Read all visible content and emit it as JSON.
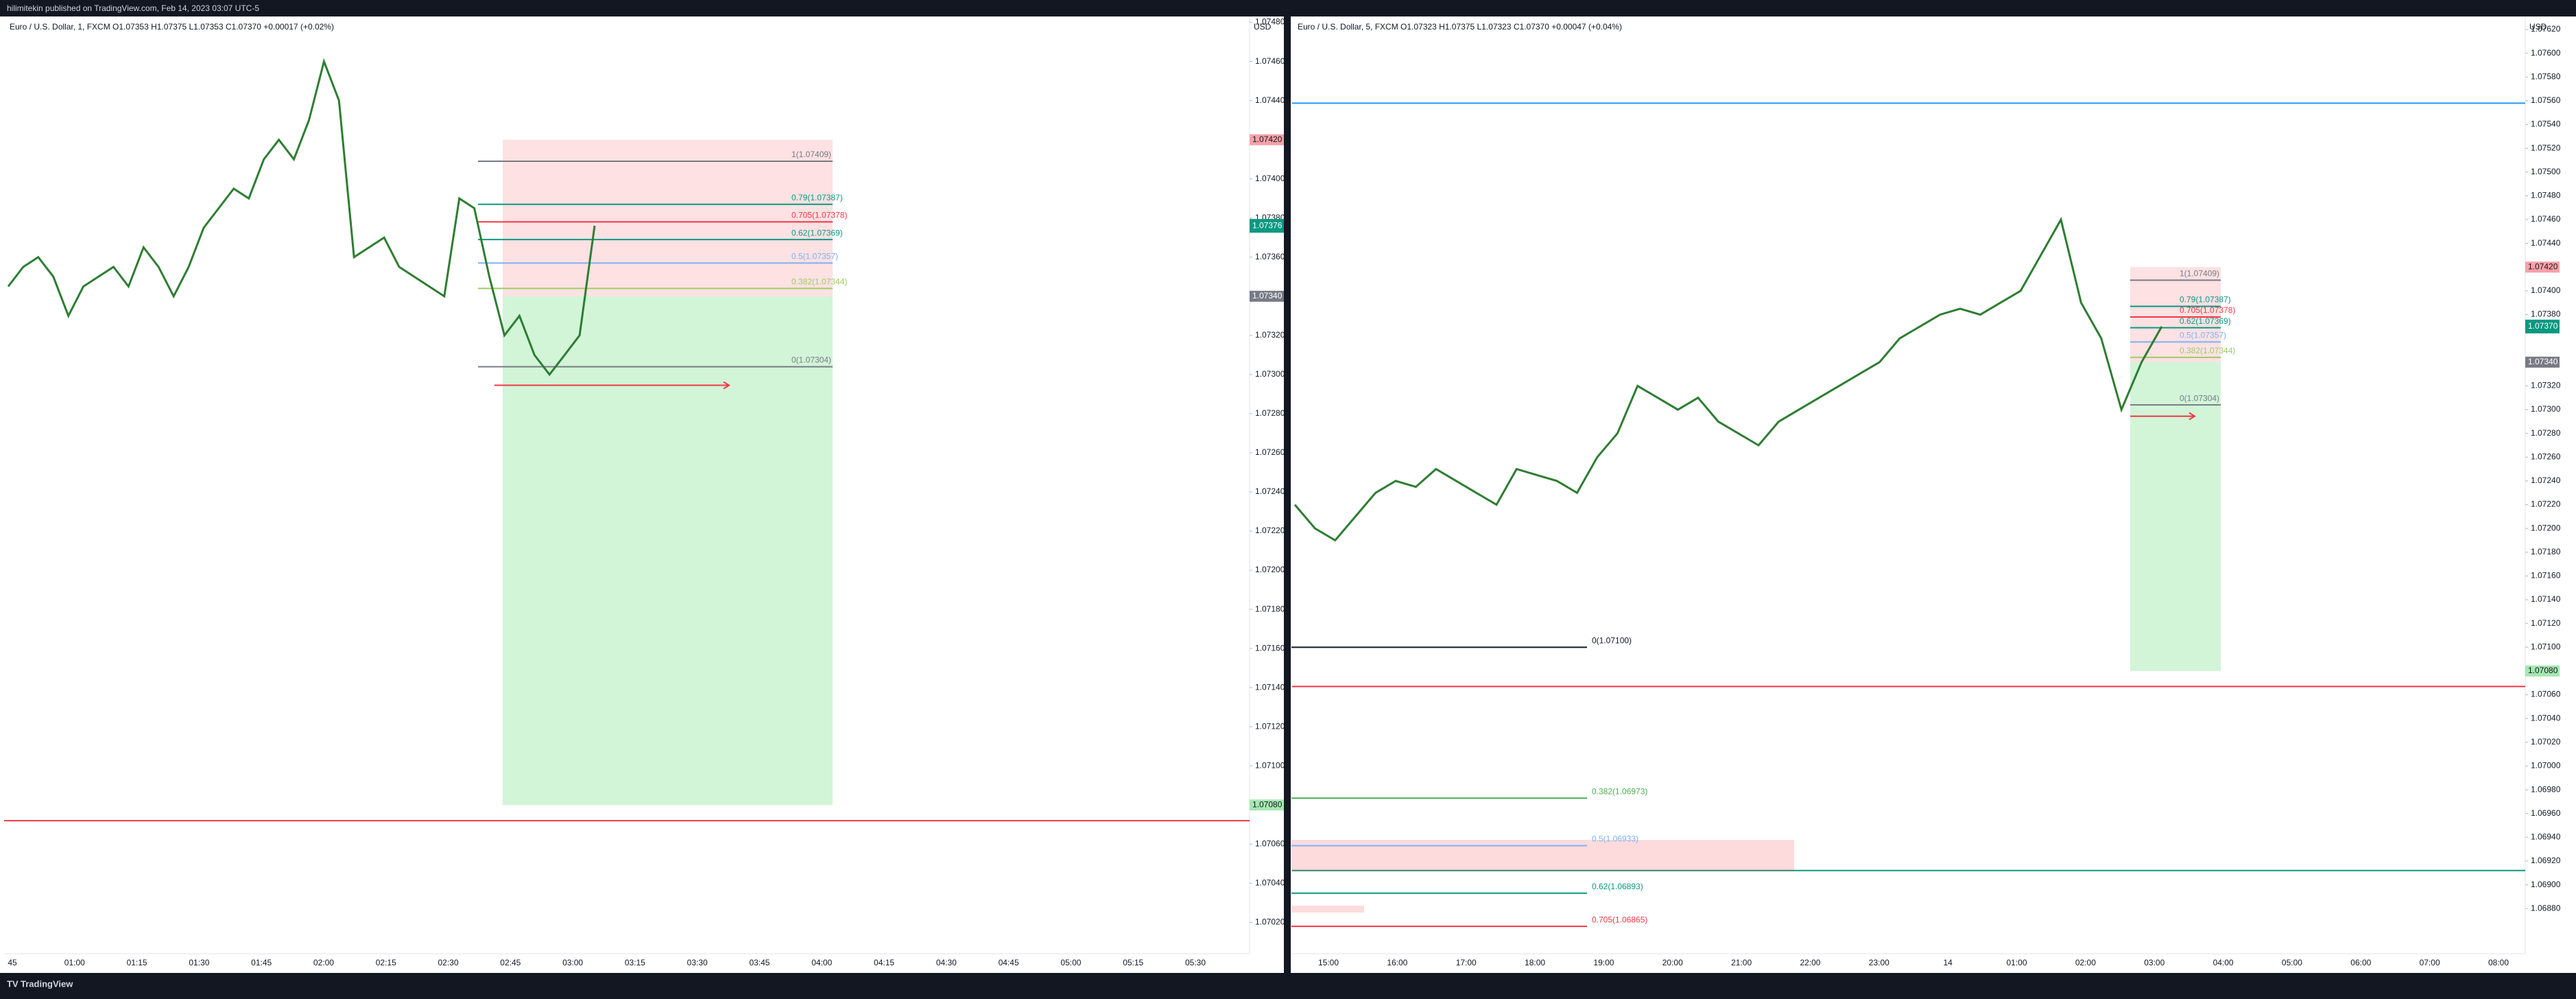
{
  "header": {
    "title": "hilimitekin published on TradingView.com, Feb 14, 2023 03:07 UTC-5"
  },
  "footer": {
    "brand": "TradingView"
  },
  "chart_data": [
    {
      "type": "line",
      "legend": "Euro / U.S. Dollar, 1, FXCM  O1.07353  H1.07375  L1.07353  C1.07370  +0.00017 (+0.02%)",
      "currency": "USD",
      "color": "#2e7d32",
      "values": [
        1.07345,
        1.07355,
        1.0736,
        1.0735,
        1.0733,
        1.07345,
        1.0735,
        1.07355,
        1.07345,
        1.07365,
        1.07355,
        1.0734,
        1.07355,
        1.07375,
        1.07385,
        1.07395,
        1.0739,
        1.0741,
        1.0742,
        1.0741,
        1.0743,
        1.0746,
        1.0744,
        1.0736,
        1.07365,
        1.0737,
        1.07355,
        1.0735,
        1.07345,
        1.0734,
        1.0739,
        1.07385,
        1.0735,
        1.0732,
        1.0733,
        1.0731,
        1.073,
        1.0731,
        1.0732,
        1.07376
      ],
      "ylim": [
        1.07004,
        1.07483
      ],
      "yticks": [
        {
          "value": 1.0748,
          "label": "1.07480"
        },
        {
          "value": 1.0746,
          "label": "1.07460"
        },
        {
          "value": 1.0744,
          "label": "1.07440"
        },
        {
          "value": 1.074,
          "label": "1.07400"
        },
        {
          "value": 1.0738,
          "label": "1.07380"
        },
        {
          "value": 1.0736,
          "label": "1.07360"
        },
        {
          "value": 1.0732,
          "label": "1.07320"
        },
        {
          "value": 1.073,
          "label": "1.07300"
        },
        {
          "value": 1.0728,
          "label": "1.07280"
        },
        {
          "value": 1.0726,
          "label": "1.07260"
        },
        {
          "value": 1.0724,
          "label": "1.07240"
        },
        {
          "value": 1.0722,
          "label": "1.07220"
        },
        {
          "value": 1.072,
          "label": "1.07200"
        },
        {
          "value": 1.0718,
          "label": "1.07180"
        },
        {
          "value": 1.0716,
          "label": "1.07160"
        },
        {
          "value": 1.0714,
          "label": "1.07140"
        },
        {
          "value": 1.0712,
          "label": "1.07120"
        },
        {
          "value": 1.071,
          "label": "1.07100"
        },
        {
          "value": 1.0706,
          "label": "1.07060"
        },
        {
          "value": 1.0704,
          "label": "1.07040"
        },
        {
          "value": 1.0702,
          "label": "1.07020"
        }
      ],
      "xticks": [
        "45",
        "01:00",
        "01:15",
        "01:30",
        "01:45",
        "02:00",
        "02:15",
        "02:30",
        "02:45",
        "03:00",
        "03:15",
        "03:30",
        "03:45",
        "04:00",
        "04:15",
        "04:30",
        "04:45",
        "05:00",
        "05:15",
        "05:30"
      ],
      "position": {
        "stop": {
          "value": 1.0742,
          "label": "1.07420"
        },
        "entry": {
          "value": 1.0734,
          "label": "1.07340"
        },
        "target": {
          "value": 1.0708,
          "label": "1.07080"
        }
      },
      "last_price": {
        "value": 1.07376,
        "label": "1.07376"
      },
      "hlines": [
        {
          "value": 1.07072,
          "color": "#f23645"
        }
      ],
      "fib": [
        {
          "label": "1(1.07409)",
          "value": 1.07409,
          "color": "#787b86"
        },
        {
          "label": "0.79(1.07387)",
          "value": 1.07387,
          "color": "#089981"
        },
        {
          "label": "0.705(1.07378)",
          "value": 1.07378,
          "color": "#f23645"
        },
        {
          "label": "0.62(1.07369)",
          "value": 1.07369,
          "color": "#089981"
        },
        {
          "label": "0.5(1.07357)",
          "value": 1.07357,
          "color": "#7eb0f5"
        },
        {
          "label": "0.382(1.07344)",
          "value": 1.07344,
          "color": "#9ccc65"
        },
        {
          "label": "0(1.07304)",
          "value": 1.07304,
          "color": "#787b86"
        }
      ]
    },
    {
      "type": "line",
      "legend": "Euro / U.S. Dollar, 5, FXCM  O1.07323  H1.07375  L1.07323  C1.07370  +0.00047 (+0.04%)",
      "currency": "USD",
      "color": "#2e7d32",
      "values": [
        1.0722,
        1.072,
        1.0719,
        1.0721,
        1.0723,
        1.0724,
        1.07235,
        1.0725,
        1.0724,
        1.0723,
        1.0722,
        1.0725,
        1.07245,
        1.0724,
        1.0723,
        1.0726,
        1.0728,
        1.0732,
        1.0731,
        1.073,
        1.0731,
        1.0729,
        1.0728,
        1.0727,
        1.0729,
        1.073,
        1.0731,
        1.0732,
        1.0733,
        1.0734,
        1.0736,
        1.0737,
        1.0738,
        1.07385,
        1.0738,
        1.0739,
        1.074,
        1.0743,
        1.0746,
        1.0739,
        1.0736,
        1.073,
        1.0734,
        1.0737
      ],
      "ylim": [
        1.06842,
        1.07631
      ],
      "yticks": [
        {
          "value": 1.0762,
          "label": "1.07620"
        },
        {
          "value": 1.076,
          "label": "1.07600"
        },
        {
          "value": 1.0758,
          "label": "1.07580"
        },
        {
          "value": 1.0756,
          "label": "1.07560"
        },
        {
          "value": 1.0754,
          "label": "1.07540"
        },
        {
          "value": 1.0752,
          "label": "1.07520"
        },
        {
          "value": 1.075,
          "label": "1.07500"
        },
        {
          "value": 1.0748,
          "label": "1.07480"
        },
        {
          "value": 1.0746,
          "label": "1.07460"
        },
        {
          "value": 1.0744,
          "label": "1.07440"
        },
        {
          "value": 1.074,
          "label": "1.07400"
        },
        {
          "value": 1.0738,
          "label": "1.07380"
        },
        {
          "value": 1.0732,
          "label": "1.07320"
        },
        {
          "value": 1.073,
          "label": "1.07300"
        },
        {
          "value": 1.0728,
          "label": "1.07280"
        },
        {
          "value": 1.0726,
          "label": "1.07260"
        },
        {
          "value": 1.0724,
          "label": "1.07240"
        },
        {
          "value": 1.0722,
          "label": "1.07220"
        },
        {
          "value": 1.072,
          "label": "1.07200"
        },
        {
          "value": 1.0718,
          "label": "1.07180"
        },
        {
          "value": 1.0716,
          "label": "1.07160"
        },
        {
          "value": 1.0714,
          "label": "1.07140"
        },
        {
          "value": 1.0712,
          "label": "1.07120"
        },
        {
          "value": 1.071,
          "label": "1.07100"
        },
        {
          "value": 1.0706,
          "label": "1.07060"
        },
        {
          "value": 1.0704,
          "label": "1.07040"
        },
        {
          "value": 1.0702,
          "label": "1.07020"
        },
        {
          "value": 1.07,
          "label": "1.07000"
        },
        {
          "value": 1.0698,
          "label": "1.06980"
        },
        {
          "value": 1.0696,
          "label": "1.06960"
        },
        {
          "value": 1.0694,
          "label": "1.06940"
        },
        {
          "value": 1.0692,
          "label": "1.06920"
        },
        {
          "value": 1.069,
          "label": "1.06900"
        },
        {
          "value": 1.0688,
          "label": "1.06880"
        }
      ],
      "xticks": [
        "15:00",
        "16:00",
        "17:00",
        "18:00",
        "19:00",
        "20:00",
        "21:00",
        "22:00",
        "23:00",
        "14",
        "01:00",
        "02:00",
        "03:00",
        "04:00",
        "05:00",
        "06:00",
        "07:00",
        "08:00"
      ],
      "position": {
        "stop": {
          "value": 1.0742,
          "label": "1.07420"
        },
        "entry": {
          "value": 1.0734,
          "label": "1.07340"
        },
        "target": {
          "value": 1.0708,
          "label": "1.07080"
        }
      },
      "last_price": {
        "value": 1.0737,
        "label": "1.07370"
      },
      "hlines": [
        {
          "value": 1.07558,
          "color": "#2196f3"
        },
        {
          "value": 1.07067,
          "color": "#f23645"
        },
        {
          "value": 1.06912,
          "color": "#089981"
        }
      ],
      "fib": [
        {
          "label": "1(1.07409)",
          "value": 1.07409,
          "color": "#787b86"
        },
        {
          "label": "0.79(1.07387)",
          "value": 1.07387,
          "color": "#089981"
        },
        {
          "label": "0.705(1.07378)",
          "value": 1.07378,
          "color": "#f23645"
        },
        {
          "label": "0.62(1.07369)",
          "value": 1.07369,
          "color": "#089981"
        },
        {
          "label": "0.5(1.07357)",
          "value": 1.07357,
          "color": "#7eb0f5"
        },
        {
          "label": "0.382(1.07344)",
          "value": 1.07344,
          "color": "#9ccc65"
        },
        {
          "label": "0(1.07304)",
          "value": 1.07304,
          "color": "#787b86"
        }
      ],
      "fib_lower": [
        {
          "label": "0(1.07100)",
          "value": 1.071,
          "color": "#131722"
        },
        {
          "label": "0.382(1.06973)",
          "value": 1.06973,
          "color": "#4caf50"
        },
        {
          "label": "0.5(1.06933)",
          "value": 1.06933,
          "color": "#7eb0f5"
        },
        {
          "label": "0.62(1.06893)",
          "value": 1.06893,
          "color": "#089981"
        },
        {
          "label": "0.705(1.06865)",
          "value": 1.06865,
          "color": "#f23645"
        }
      ]
    }
  ]
}
